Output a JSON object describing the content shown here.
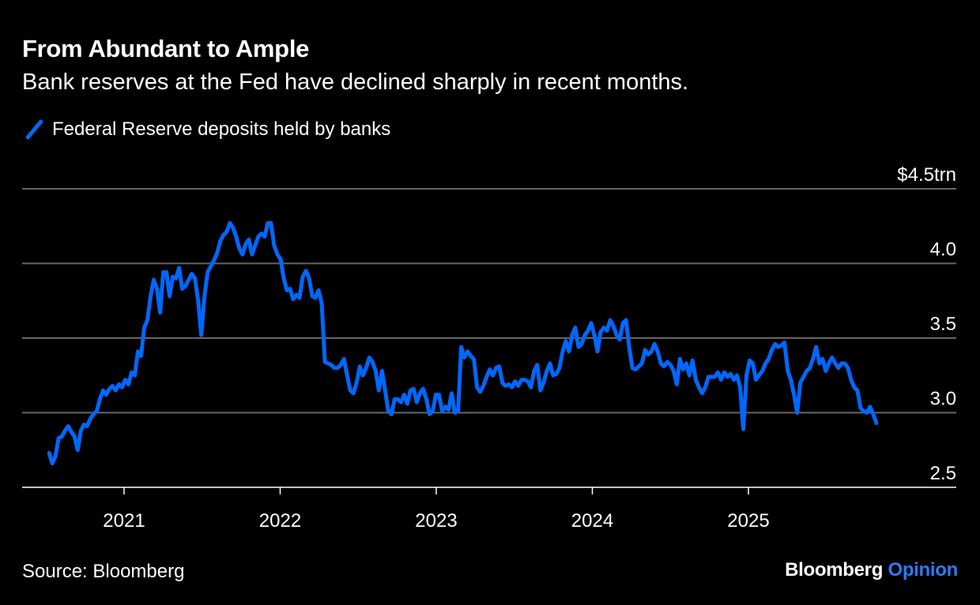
{
  "title": "From Abundant to Ample",
  "subtitle": "Bank reserves at the Fed have declined sharply in recent months.",
  "legend": {
    "label": "Federal Reserve deposits held by banks"
  },
  "source": "Source: Bloomberg",
  "logo": {
    "brand": "Bloomberg",
    "section": "Opinion"
  },
  "colors": {
    "line": "#0068ff",
    "grid": "#666666",
    "background": "#000000",
    "logo_accent": "#2b7bff"
  },
  "chart_data": {
    "type": "line",
    "title": "From Abundant to Ample",
    "xlabel": "",
    "ylabel": "",
    "x_range": [
      2020.52,
      2025.82
    ],
    "xlim": [
      2020.01,
      2026.0
    ],
    "ylim": [
      2.5,
      4.5
    ],
    "yticks": [
      {
        "v": 4.5,
        "label": "$4.5trn"
      },
      {
        "v": 4.0,
        "label": "4.0"
      },
      {
        "v": 3.5,
        "label": "3.5"
      },
      {
        "v": 3.0,
        "label": "3.0"
      },
      {
        "v": 2.5,
        "label": "2.5"
      }
    ],
    "xticks": [
      {
        "v": 2021,
        "label": "2021"
      },
      {
        "v": 2022,
        "label": "2022"
      },
      {
        "v": 2023,
        "label": "2023"
      },
      {
        "v": 2024,
        "label": "2024"
      },
      {
        "v": 2025,
        "label": "2025"
      }
    ],
    "grid": true,
    "legend_position": "top-left",
    "series": [
      {
        "name": "Federal Reserve deposits held by banks",
        "unit": "trillion USD",
        "values": [
          2.73,
          2.66,
          2.71,
          2.83,
          2.84,
          2.88,
          2.91,
          2.87,
          2.84,
          2.75,
          2.88,
          2.92,
          2.91,
          2.96,
          2.99,
          3.01,
          3.09,
          3.15,
          3.12,
          3.16,
          3.18,
          3.15,
          3.19,
          3.17,
          3.22,
          3.19,
          3.27,
          3.25,
          3.41,
          3.38,
          3.57,
          3.62,
          3.78,
          3.89,
          3.83,
          3.67,
          3.94,
          3.94,
          3.78,
          3.91,
          3.9,
          3.97,
          3.83,
          3.85,
          3.89,
          3.93,
          3.9,
          3.75,
          3.52,
          3.78,
          3.94,
          3.98,
          4.02,
          4.07,
          4.15,
          4.19,
          4.21,
          4.27,
          4.24,
          4.18,
          4.1,
          4.06,
          4.13,
          4.16,
          4.06,
          4.12,
          4.18,
          4.2,
          4.18,
          4.27,
          4.27,
          4.12,
          4.06,
          4.03,
          3.9,
          3.82,
          3.83,
          3.76,
          3.79,
          3.77,
          3.91,
          3.95,
          3.9,
          3.78,
          3.77,
          3.82,
          3.73,
          3.34,
          3.33,
          3.32,
          3.3,
          3.3,
          3.32,
          3.36,
          3.25,
          3.15,
          3.13,
          3.2,
          3.31,
          3.25,
          3.3,
          3.37,
          3.34,
          3.28,
          3.15,
          3.28,
          3.15,
          3.01,
          2.99,
          3.09,
          3.09,
          3.07,
          3.12,
          3.06,
          3.15,
          3.16,
          3.07,
          3.13,
          3.16,
          3.09,
          2.99,
          3.01,
          3.12,
          3.12,
          3.01,
          3.04,
          3.02,
          3.13,
          3.0,
          3.01,
          3.44,
          3.37,
          3.41,
          3.38,
          3.36,
          3.17,
          3.14,
          3.18,
          3.24,
          3.29,
          3.25,
          3.3,
          3.31,
          3.2,
          3.18,
          3.19,
          3.17,
          3.21,
          3.18,
          3.22,
          3.22,
          3.21,
          3.17,
          3.28,
          3.32,
          3.15,
          3.2,
          3.28,
          3.33,
          3.25,
          3.26,
          3.3,
          3.41,
          3.48,
          3.41,
          3.52,
          3.57,
          3.44,
          3.46,
          3.52,
          3.55,
          3.6,
          3.52,
          3.41,
          3.54,
          3.57,
          3.55,
          3.62,
          3.58,
          3.52,
          3.49,
          3.6,
          3.62,
          3.44,
          3.3,
          3.29,
          3.31,
          3.33,
          3.42,
          3.39,
          3.41,
          3.46,
          3.41,
          3.33,
          3.31,
          3.34,
          3.32,
          3.28,
          3.19,
          3.36,
          3.29,
          3.33,
          3.25,
          3.35,
          3.22,
          3.17,
          3.13,
          3.17,
          3.24,
          3.24,
          3.24,
          3.27,
          3.22,
          3.27,
          3.24,
          3.26,
          3.22,
          3.25,
          3.17,
          2.89,
          3.25,
          3.35,
          3.33,
          3.22,
          3.25,
          3.28,
          3.33,
          3.36,
          3.42,
          3.46,
          3.44,
          3.45,
          3.47,
          3.28,
          3.22,
          3.12,
          3.0,
          3.2,
          3.24,
          3.28,
          3.3,
          3.36,
          3.44,
          3.33,
          3.36,
          3.28,
          3.33,
          3.37,
          3.33,
          3.3,
          3.33,
          3.33,
          3.3,
          3.22,
          3.17,
          3.15,
          3.03,
          3.01,
          3.0,
          3.04,
          2.99,
          2.93
        ]
      }
    ]
  }
}
